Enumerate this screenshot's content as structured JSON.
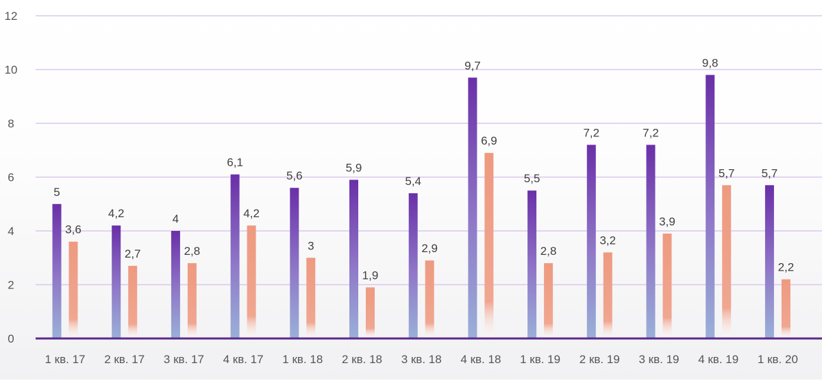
{
  "chart_data": {
    "type": "bar",
    "title": "",
    "xlabel": "",
    "ylabel": "",
    "ylim": [
      0,
      12
    ],
    "yticks": [
      0,
      2,
      4,
      6,
      8,
      10,
      12
    ],
    "grid": true,
    "legend": "none",
    "categories": [
      "1 кв. 17",
      "2 кв. 17",
      "3 кв. 17",
      "4 кв. 17",
      "1 кв. 18",
      "2 кв. 18",
      "3 кв. 18",
      "4 кв. 18",
      "1 кв. 19",
      "2 кв. 19",
      "3 кв. 19",
      "4 кв. 19",
      "1 кв. 20"
    ],
    "series": [
      {
        "name": "series-1",
        "color": "#6a2fa8",
        "values": [
          5,
          4.2,
          4,
          6.1,
          5.6,
          5.9,
          5.4,
          9.7,
          5.5,
          7.2,
          7.2,
          9.8,
          5.7
        ],
        "labels": [
          "5",
          "4,2",
          "4",
          "6,1",
          "5,6",
          "5,9",
          "5,4",
          "9,7",
          "5,5",
          "7,2",
          "7,2",
          "9,8",
          "5,7"
        ]
      },
      {
        "name": "series-2",
        "color": "#ee9a80",
        "values": [
          3.6,
          2.7,
          2.8,
          4.2,
          3,
          1.9,
          2.9,
          6.9,
          2.8,
          3.2,
          3.9,
          5.7,
          2.2
        ],
        "labels": [
          "3,6",
          "2,7",
          "2,8",
          "4,2",
          "3",
          "1,9",
          "2,9",
          "6,9",
          "2,8",
          "3,2",
          "3,9",
          "5,7",
          "2,2"
        ]
      }
    ],
    "colors": {
      "grid": "#d9c8ec",
      "axis": "#5a2a8a",
      "series1_top": "#6a2fa8",
      "series1_bottom": "#9ab0d8",
      "series2_top": "#ee9a80",
      "series2_bottom": "#ffffff"
    }
  }
}
